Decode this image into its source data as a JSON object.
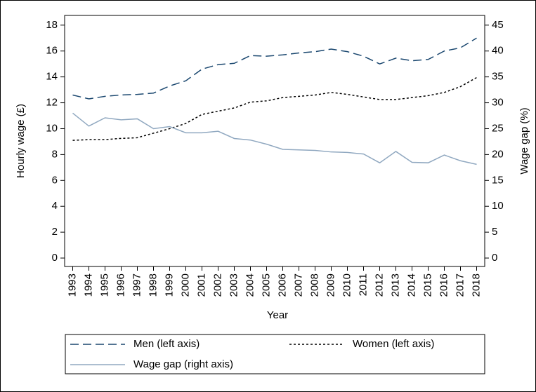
{
  "chart_data": {
    "type": "line",
    "x_label": "Year",
    "y_label": "Hourly wage (£)",
    "y2_label": "Wage gap (%)",
    "x": [
      1993,
      1994,
      1995,
      1996,
      1997,
      1998,
      1999,
      2000,
      2001,
      2002,
      2003,
      2004,
      2005,
      2006,
      2007,
      2008,
      2009,
      2010,
      2011,
      2012,
      2013,
      2014,
      2015,
      2016,
      2017,
      2018
    ],
    "xlim": [
      1992.5,
      2018.5
    ],
    "xticks": [
      1993,
      1994,
      1995,
      1996,
      1997,
      1998,
      1999,
      2000,
      2001,
      2002,
      2003,
      2004,
      2005,
      2006,
      2007,
      2008,
      2009,
      2010,
      2011,
      2012,
      2013,
      2014,
      2015,
      2016,
      2017,
      2018
    ],
    "ylim": [
      -0.65,
      18.75
    ],
    "yticks": [
      0,
      2,
      4,
      6,
      8,
      10,
      12,
      14,
      16,
      18
    ],
    "y2lim": [
      -1.625,
      46.875
    ],
    "y2ticks": [
      0,
      5,
      10,
      15,
      20,
      25,
      30,
      35,
      40,
      45
    ],
    "series": [
      {
        "name": "Men (left axis)",
        "color": "#1a476f",
        "dash": "12 6",
        "values": [
          12.6,
          12.3,
          12.5,
          12.6,
          12.65,
          12.75,
          13.3,
          13.7,
          14.6,
          14.95,
          15.05,
          15.65,
          15.6,
          15.7,
          15.85,
          15.95,
          16.15,
          15.95,
          15.6,
          15.0,
          15.45,
          15.25,
          15.35,
          16.0,
          16.25,
          17.0
        ]
      },
      {
        "name": "Women (left axis)",
        "color": "#000000",
        "dash": "3 3",
        "values": [
          9.1,
          9.15,
          9.15,
          9.25,
          9.3,
          9.65,
          10.0,
          10.4,
          11.1,
          11.35,
          11.6,
          12.05,
          12.15,
          12.4,
          12.5,
          12.6,
          12.8,
          12.65,
          12.45,
          12.25,
          12.25,
          12.4,
          12.55,
          12.8,
          13.25,
          13.95
        ]
      },
      {
        "name": "Wage gap (right axis)",
        "color": "#90a8c0",
        "axis": "y2",
        "values": [
          28.0,
          25.5,
          27.1,
          26.7,
          26.9,
          25.0,
          25.4,
          24.2,
          24.2,
          24.5,
          23.1,
          22.8,
          22.0,
          21.0,
          20.9,
          20.8,
          20.5,
          20.4,
          20.1,
          18.4,
          20.6,
          18.5,
          18.4,
          19.9,
          18.8,
          18.1
        ]
      }
    ]
  }
}
